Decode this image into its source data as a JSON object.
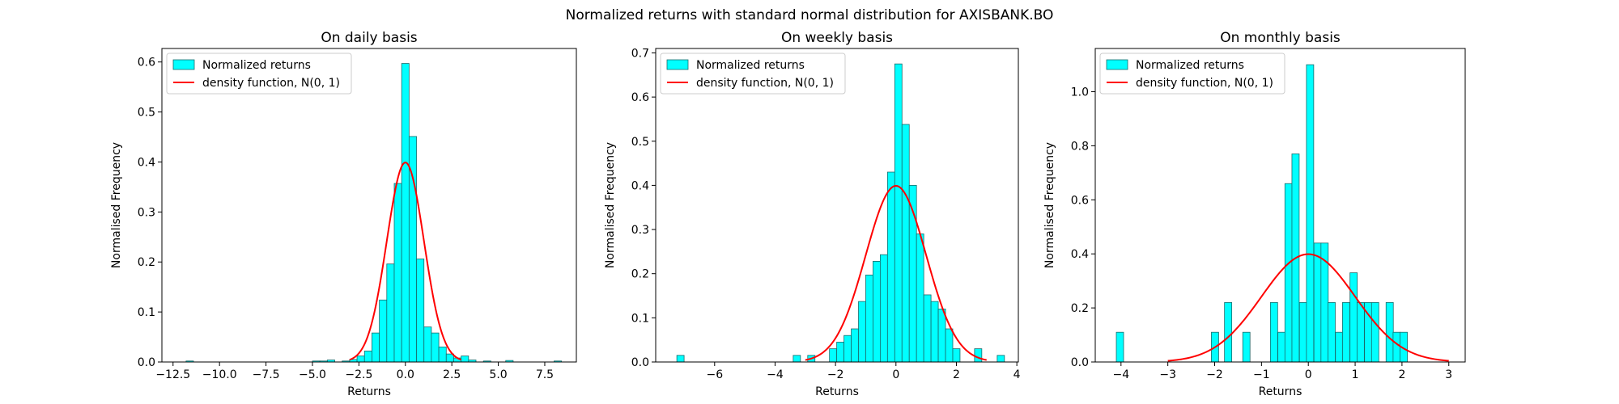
{
  "figure": {
    "suptitle": "Normalized returns with standard normal distribution for AXISBANK.BO"
  },
  "colors": {
    "bar_fill": "#00ffff",
    "bar_edge": "#1a6b6b",
    "curve": "#ff0000",
    "axis": "#000000"
  },
  "chart_data": [
    {
      "type": "bar",
      "title": "On daily basis",
      "xlabel": "Returns",
      "ylabel": "Normalised Frequency",
      "xlim": [
        -13.1,
        9.2
      ],
      "ylim": [
        0,
        0.627
      ],
      "xticks": [
        -12.5,
        -10.0,
        -7.5,
        -5.0,
        -2.5,
        0.0,
        2.5,
        5.0,
        7.5
      ],
      "xtick_labels": [
        "−12.5",
        "−10.0",
        "−7.5",
        "−5.0",
        "−2.5",
        "0.0",
        "2.5",
        "5.0",
        "7.5"
      ],
      "yticks": [
        0.0,
        0.1,
        0.2,
        0.3,
        0.4,
        0.5,
        0.6
      ],
      "ytick_labels": [
        "0.0",
        "0.1",
        "0.2",
        "0.3",
        "0.4",
        "0.5",
        "0.6"
      ],
      "bin_width": 0.4,
      "bars": [
        {
          "x": -11.8,
          "y": 0.002
        },
        {
          "x": -5.0,
          "y": 0.002
        },
        {
          "x": -4.6,
          "y": 0.002
        },
        {
          "x": -4.2,
          "y": 0.004
        },
        {
          "x": -3.4,
          "y": 0.002
        },
        {
          "x": -3.0,
          "y": 0.005
        },
        {
          "x": -2.6,
          "y": 0.012
        },
        {
          "x": -2.2,
          "y": 0.022
        },
        {
          "x": -1.8,
          "y": 0.058
        },
        {
          "x": -1.4,
          "y": 0.124
        },
        {
          "x": -1.0,
          "y": 0.196
        },
        {
          "x": -0.6,
          "y": 0.357
        },
        {
          "x": -0.2,
          "y": 0.597
        },
        {
          "x": 0.2,
          "y": 0.451
        },
        {
          "x": 0.6,
          "y": 0.206
        },
        {
          "x": 1.0,
          "y": 0.07
        },
        {
          "x": 1.4,
          "y": 0.058
        },
        {
          "x": 1.8,
          "y": 0.03
        },
        {
          "x": 2.2,
          "y": 0.016
        },
        {
          "x": 2.6,
          "y": 0.008
        },
        {
          "x": 3.0,
          "y": 0.012
        },
        {
          "x": 3.4,
          "y": 0.004
        },
        {
          "x": 4.2,
          "y": 0.002
        },
        {
          "x": 5.4,
          "y": 0.003
        },
        {
          "x": 8.0,
          "y": 0.002
        }
      ],
      "curve": {
        "name": "density function, N(0, 1)",
        "x_from": -3,
        "x_to": 3
      },
      "legend": {
        "position": "top-left",
        "entries": [
          "Normalized returns",
          "density function, N(0, 1)"
        ]
      }
    },
    {
      "type": "bar",
      "title": "On weekly basis",
      "xlabel": "Returns",
      "ylabel": "Normalised Frequency",
      "xlim": [
        -7.95,
        4.05
      ],
      "ylim": [
        0,
        0.71
      ],
      "xticks": [
        -6,
        -4,
        -2,
        0,
        2,
        4
      ],
      "xtick_labels": [
        "−6",
        "−4",
        "−2",
        "0",
        "2",
        "4"
      ],
      "yticks": [
        0.0,
        0.1,
        0.2,
        0.3,
        0.4,
        0.5,
        0.6,
        0.7
      ],
      "ytick_labels": [
        "0.0",
        "0.1",
        "0.2",
        "0.3",
        "0.4",
        "0.5",
        "0.6",
        "0.7"
      ],
      "bin_width": 0.24,
      "bars": [
        {
          "x": -7.25,
          "y": 0.015
        },
        {
          "x": -3.4,
          "y": 0.015
        },
        {
          "x": -2.92,
          "y": 0.015
        },
        {
          "x": -2.2,
          "y": 0.03
        },
        {
          "x": -1.96,
          "y": 0.045
        },
        {
          "x": -1.72,
          "y": 0.06
        },
        {
          "x": -1.48,
          "y": 0.075
        },
        {
          "x": -1.24,
          "y": 0.137
        },
        {
          "x": -1.0,
          "y": 0.197
        },
        {
          "x": -0.76,
          "y": 0.228
        },
        {
          "x": -0.52,
          "y": 0.243
        },
        {
          "x": -0.28,
          "y": 0.43
        },
        {
          "x": -0.04,
          "y": 0.675
        },
        {
          "x": 0.2,
          "y": 0.538
        },
        {
          "x": 0.44,
          "y": 0.4
        },
        {
          "x": 0.68,
          "y": 0.29
        },
        {
          "x": 0.92,
          "y": 0.152
        },
        {
          "x": 1.16,
          "y": 0.137
        },
        {
          "x": 1.4,
          "y": 0.12
        },
        {
          "x": 1.64,
          "y": 0.075
        },
        {
          "x": 1.88,
          "y": 0.03
        },
        {
          "x": 2.6,
          "y": 0.03
        },
        {
          "x": 3.35,
          "y": 0.015
        }
      ],
      "curve": {
        "name": "density function, N(0, 1)",
        "x_from": -3,
        "x_to": 3
      },
      "legend": {
        "position": "top-left",
        "entries": [
          "Normalized returns",
          "density function, N(0, 1)"
        ]
      }
    },
    {
      "type": "bar",
      "title": "On monthly basis",
      "xlabel": "Returns",
      "ylabel": "Normalised Frequency",
      "xlim": [
        -4.55,
        3.35
      ],
      "ylim": [
        0,
        1.16
      ],
      "xticks": [
        -4,
        -3,
        -2,
        -1,
        0,
        1,
        2,
        3
      ],
      "xtick_labels": [
        "−4",
        "−3",
        "−2",
        "−1",
        "0",
        "1",
        "2",
        "3"
      ],
      "yticks": [
        0.0,
        0.2,
        0.4,
        0.6,
        0.8,
        1.0
      ],
      "ytick_labels": [
        "0.0",
        "0.2",
        "0.4",
        "0.6",
        "0.8",
        "1.0"
      ],
      "bin_width": 0.155,
      "bars": [
        {
          "x": -4.1,
          "y": 0.11
        },
        {
          "x": -2.07,
          "y": 0.11
        },
        {
          "x": -1.79,
          "y": 0.22
        },
        {
          "x": -1.4,
          "y": 0.11
        },
        {
          "x": -0.81,
          "y": 0.22
        },
        {
          "x": -0.65,
          "y": 0.11
        },
        {
          "x": -0.5,
          "y": 0.66
        },
        {
          "x": -0.35,
          "y": 0.77
        },
        {
          "x": -0.19,
          "y": 0.22
        },
        {
          "x": -0.04,
          "y": 1.1
        },
        {
          "x": 0.12,
          "y": 0.44
        },
        {
          "x": 0.27,
          "y": 0.44
        },
        {
          "x": 0.42,
          "y": 0.22
        },
        {
          "x": 0.58,
          "y": 0.11
        },
        {
          "x": 0.73,
          "y": 0.22
        },
        {
          "x": 0.89,
          "y": 0.33
        },
        {
          "x": 1.04,
          "y": 0.22
        },
        {
          "x": 1.2,
          "y": 0.22
        },
        {
          "x": 1.35,
          "y": 0.22
        },
        {
          "x": 1.66,
          "y": 0.22
        },
        {
          "x": 1.81,
          "y": 0.11
        },
        {
          "x": 1.96,
          "y": 0.11
        }
      ],
      "curve": {
        "name": "density function, N(0, 1)",
        "x_from": -3,
        "x_to": 3
      },
      "legend": {
        "position": "top-left",
        "entries": [
          "Normalized returns",
          "density function, N(0, 1)"
        ]
      }
    }
  ]
}
